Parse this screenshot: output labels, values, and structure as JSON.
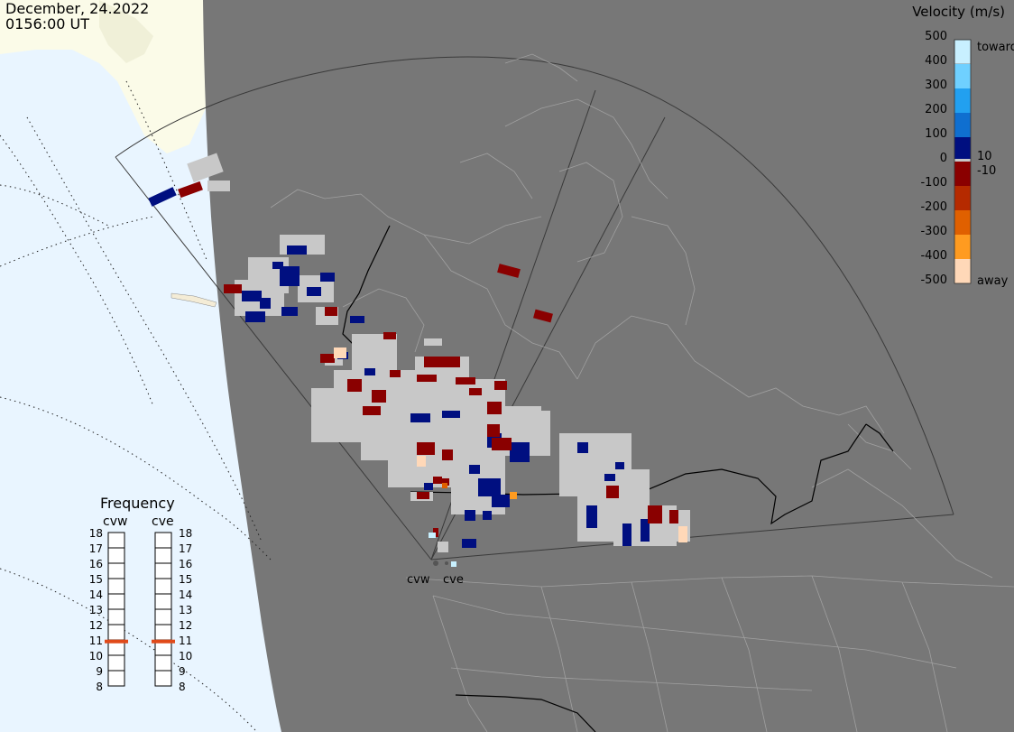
{
  "header": {
    "date": "December, 24.2022",
    "time": "0156:00 UT"
  },
  "velocity_scale": {
    "title": "Velocity (m/s)",
    "ticks": [
      "500",
      "400",
      "300",
      "200",
      "100",
      "0",
      "-100",
      "-200",
      "-300",
      "-400",
      "-500"
    ],
    "toward_label": "toward",
    "away_label": "away",
    "plus_threshold": "10",
    "minus_threshold": "-10",
    "colors": [
      "#c8f0ff",
      "#6fd0ff",
      "#22a0f0",
      "#0f6fd0",
      "#0a3fa8",
      "#000f80",
      "#8a0000",
      "#b52a00",
      "#e06000",
      "#ff9b20",
      "#ffd8b8"
    ]
  },
  "frequency_panel": {
    "title": "Frequency",
    "radars": [
      "cvw",
      "cve"
    ],
    "scale": [
      "18",
      "17",
      "16",
      "15",
      "14",
      "13",
      "12",
      "11",
      "10",
      "9",
      "8"
    ],
    "cvw_mhz": 10.9,
    "cve_mhz": 10.9,
    "indicator_color": "#e04a1a"
  },
  "map": {
    "radar_sites": [
      "cvw",
      "cve"
    ],
    "colors": {
      "ocean": "#e9f5ff",
      "land_day": "#fbfbe8",
      "night": "#777777",
      "ground_scatter": "#c8c8c8",
      "borders": "#000000"
    }
  }
}
